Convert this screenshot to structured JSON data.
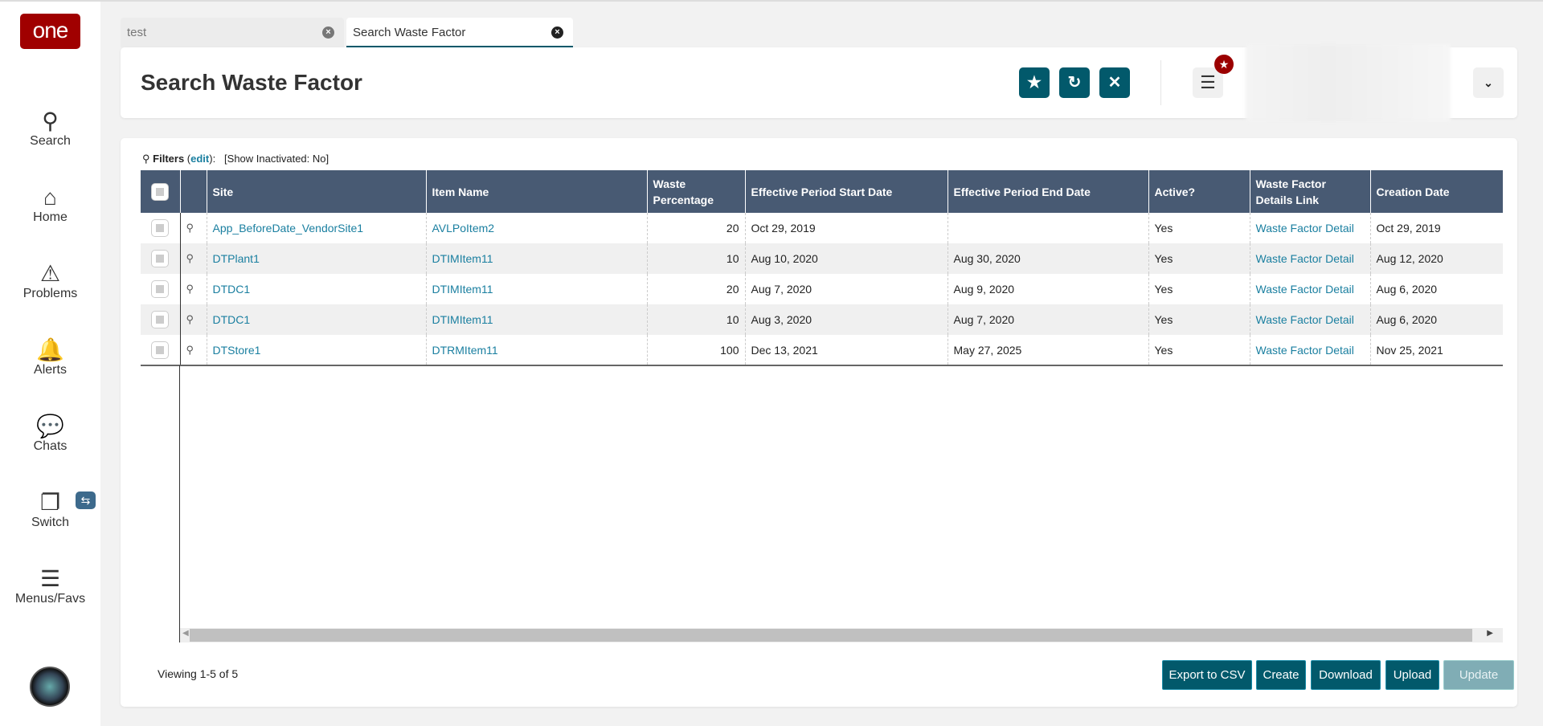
{
  "sidebar": {
    "logo": "one",
    "items": [
      {
        "label": "Search",
        "icon": "search-icon"
      },
      {
        "label": "Home",
        "icon": "home-icon"
      },
      {
        "label": "Problems",
        "icon": "warning-icon"
      },
      {
        "label": "Alerts",
        "icon": "bell-icon"
      },
      {
        "label": "Chats",
        "icon": "chat-icon"
      },
      {
        "label": "Switch",
        "icon": "windows-icon"
      },
      {
        "label": "Menus/Favs",
        "icon": "menu-icon"
      }
    ]
  },
  "tabs": [
    {
      "label": "test",
      "active": false
    },
    {
      "label": "Search Waste Factor",
      "active": true
    }
  ],
  "header": {
    "title": "Search Waste Factor"
  },
  "filters": {
    "label": "Filters",
    "edit": "edit",
    "summary": "[Show Inactivated: No]"
  },
  "table": {
    "columns": [
      "Site",
      "Item Name",
      "Waste Percentage",
      "Effective Period Start Date",
      "Effective Period End Date",
      "Active?",
      "Waste Factor Details Link",
      "Creation Date"
    ],
    "rows": [
      [
        "App_BeforeDate_VendorSite1",
        "AVLPoItem2",
        "20",
        "Oct 29, 2019",
        "",
        "Yes",
        "Waste Factor Detail",
        "Oct 29, 2019"
      ],
      [
        "DTPlant1",
        "DTIMItem11",
        "10",
        "Aug 10, 2020",
        "Aug 30, 2020",
        "Yes",
        "Waste Factor Detail",
        "Aug 12, 2020"
      ],
      [
        "DTDC1",
        "DTIMItem11",
        "20",
        "Aug 7, 2020",
        "Aug 9, 2020",
        "Yes",
        "Waste Factor Detail",
        "Aug 6, 2020"
      ],
      [
        "DTDC1",
        "DTIMItem11",
        "10",
        "Aug 3, 2020",
        "Aug 7, 2020",
        "Yes",
        "Waste Factor Detail",
        "Aug 6, 2020"
      ],
      [
        "DTStore1",
        "DTRMItem11",
        "100",
        "Dec 13, 2021",
        "May 27, 2025",
        "Yes",
        "Waste Factor Detail",
        "Nov 25, 2021"
      ]
    ]
  },
  "footer": {
    "viewing": "Viewing 1-5 of 5",
    "buttons": [
      "Export to CSV",
      "Create",
      "Download",
      "Upload",
      "Update"
    ]
  },
  "colors": {
    "primary": "#02596b",
    "header": "#485a73",
    "link": "#1a7fa0",
    "brand": "#a00000"
  }
}
